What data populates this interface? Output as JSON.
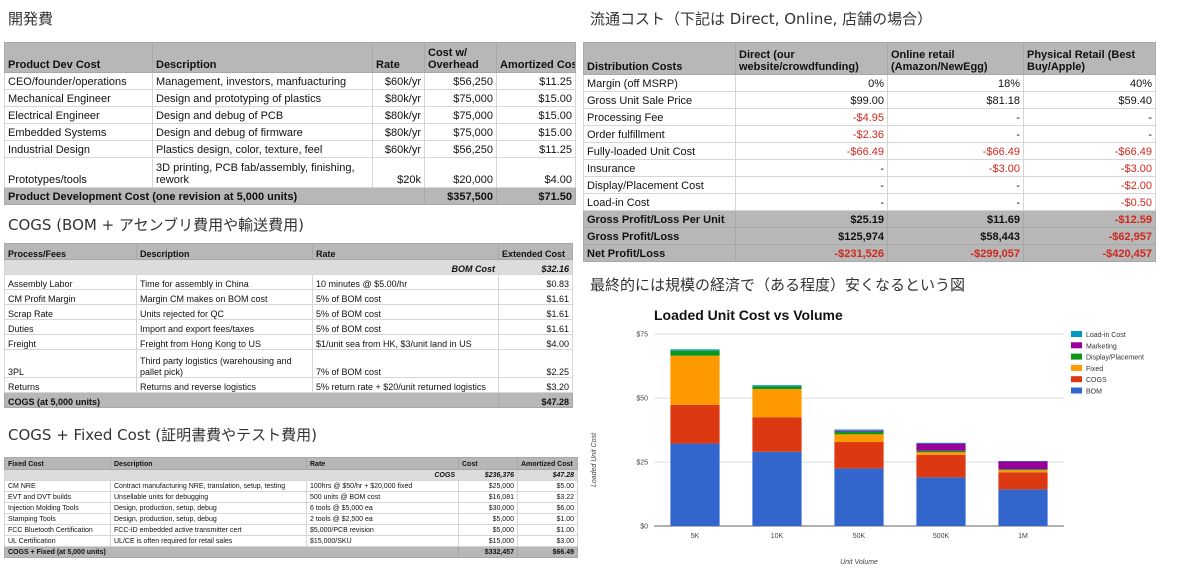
{
  "headings": {
    "dev": "開発費",
    "dist": "流通コスト（下記は Direct, Online, 店舗の場合）",
    "cogs": "COGS (BOM + アセンブリ費用や輸送費用)",
    "fixed": "COGS + Fixed Cost (証明書費やテスト費用)",
    "chart": "最終的には規模の経済で（ある程度）安くなるという図"
  },
  "dev_table": {
    "headers": [
      "Product Dev Cost",
      "Description",
      "Rate",
      "Cost w/ Overhead",
      "Amortized Cost"
    ],
    "rows": [
      [
        "CEO/founder/operations",
        "Management, investors, manfuacturing",
        "$60k/yr",
        "$56,250",
        "$11.25"
      ],
      [
        "Mechanical Engineer",
        "Design and prototyping of plastics",
        "$80k/yr",
        "$75,000",
        "$15.00"
      ],
      [
        "Electrical Engineer",
        "Design and debug of PCB",
        "$80k/yr",
        "$75,000",
        "$15.00"
      ],
      [
        "Embedded Systems",
        "Design and debug of firmware",
        "$80k/yr",
        "$75,000",
        "$15.00"
      ],
      [
        "Industrial Design",
        "Plastics design, color, texture, feel",
        "$60k/yr",
        "$56,250",
        "$11.25"
      ],
      [
        "Prototypes/tools",
        "3D printing, PCB fab/assembly, finishing, rework",
        "$20k",
        "$20,000",
        "$4.00"
      ]
    ],
    "total": [
      "Product Development Cost (one revision at 5,000 units)",
      "$357,500",
      "$71.50"
    ]
  },
  "cogs_table": {
    "headers": [
      "Process/Fees",
      "Description",
      "Rate",
      "Extended Cost"
    ],
    "sub": [
      "BOM Cost",
      "$32.16"
    ],
    "rows": [
      [
        "Assembly Labor",
        "Time for assembly in China",
        "10 minutes @ $5.00/hr",
        "$0.83"
      ],
      [
        "CM Profit Margin",
        "Margin CM makes on BOM cost",
        "5% of BOM cost",
        "$1.61"
      ],
      [
        "Scrap Rate",
        "Units rejected for QC",
        "5% of BOM cost",
        "$1.61"
      ],
      [
        "Duties",
        "Import and export fees/taxes",
        "5% of BOM cost",
        "$1.61"
      ],
      [
        "Freight",
        "Freight from Hong Kong to US",
        "$1/unit sea from HK, $3/unit land in US",
        "$4.00"
      ],
      [
        "3PL",
        "Third party logistics (warehousing and pallet pick)",
        "7% of BOM cost",
        "$2.25"
      ],
      [
        "Returns",
        "Returns and reverse logistics",
        "5% return rate + $20/unit returned logistics",
        "$3.20"
      ]
    ],
    "total": [
      "COGS (at 5,000 units)",
      "$47.28"
    ]
  },
  "fixed_table": {
    "headers": [
      "Fixed Cost",
      "Description",
      "Rate",
      "Cost",
      "Amortized Cost"
    ],
    "sub": [
      "COGS",
      "$236,376",
      "$47.28"
    ],
    "rows": [
      [
        "CM NRE",
        "Contract manufacturing NRE, translation, setup, testing",
        "100hrs @ $50/hr + $20,000 fixed",
        "$25,000",
        "$5.00"
      ],
      [
        "EVT and DVT builds",
        "Unsellable units for debugging",
        "500 units @ BOM cost",
        "$16,081",
        "$3.22"
      ],
      [
        "Injection Molding Tools",
        "Design, production, setup, debug",
        "6 tools @ $5,000 ea",
        "$30,000",
        "$6.00"
      ],
      [
        "Stamping Tools",
        "Design, production, setup, debug",
        "2 tools @ $2,500 ea",
        "$5,000",
        "$1.00"
      ],
      [
        "FCC Bluetooth Certification",
        "FCC-ID embedded active transmitter cert",
        "$5,000/PCB revision",
        "$5,000",
        "$1.00"
      ],
      [
        "UL Certification",
        "UL/CE is often required for retail sales",
        "$15,000/SKU",
        "$15,000",
        "$3.00"
      ]
    ],
    "total": [
      "COGS + Fixed (at 5,000 units)",
      "$332,457",
      "$66.49"
    ]
  },
  "dist_table": {
    "headers": [
      "Distribution Costs",
      "Direct (our website/crowdfunding)",
      "Online retail (Amazon/NewEgg)",
      "Physical Retail (Best Buy/Apple)"
    ],
    "rows": [
      {
        "cells": [
          "Margin (off MSRP)",
          "0%",
          "18%",
          "40%"
        ],
        "red": [
          false,
          false,
          false
        ]
      },
      {
        "cells": [
          "Gross Unit Sale Price",
          "$99.00",
          "$81.18",
          "$59.40"
        ],
        "red": [
          false,
          false,
          false
        ]
      },
      {
        "cells": [
          "Processing Fee",
          "-$4.95",
          "-",
          "-"
        ],
        "red": [
          true,
          false,
          false
        ]
      },
      {
        "cells": [
          "Order fulfillment",
          "-$2.36",
          "-",
          "-"
        ],
        "red": [
          true,
          false,
          false
        ]
      },
      {
        "cells": [
          "Fully-loaded Unit Cost",
          "-$66.49",
          "-$66.49",
          "-$66.49"
        ],
        "red": [
          true,
          true,
          true
        ]
      },
      {
        "cells": [
          "Insurance",
          "-",
          "-$3.00",
          "-$3.00"
        ],
        "red": [
          false,
          true,
          true
        ]
      },
      {
        "cells": [
          "Display/Placement Cost",
          "-",
          "-",
          "-$2.00"
        ],
        "red": [
          false,
          false,
          true
        ]
      },
      {
        "cells": [
          "Load-in Cost",
          "-",
          "-",
          "-$0.50"
        ],
        "red": [
          false,
          false,
          true
        ]
      }
    ],
    "totals": [
      {
        "cells": [
          "Gross Profit/Loss Per Unit",
          "$25.19",
          "$11.69",
          "-$12.59"
        ],
        "red": [
          false,
          false,
          true
        ]
      },
      {
        "cells": [
          "Gross Profit/Loss",
          "$125,974",
          "$58,443",
          "-$62,957"
        ],
        "red": [
          false,
          false,
          true
        ]
      },
      {
        "cells": [
          "Net Profit/Loss",
          "-$231,526",
          "-$299,057",
          "-$420,457"
        ],
        "red": [
          true,
          true,
          true
        ]
      }
    ]
  },
  "chart_data": {
    "type": "bar",
    "stacked": true,
    "title": "Loaded Unit Cost vs Volume",
    "xlabel": "Unit Volume",
    "ylabel": "Loaded Unit Cost",
    "categories": [
      "5K",
      "10K",
      "50K",
      "500K",
      "1M"
    ],
    "ylim": [
      0,
      75
    ],
    "yticks": [
      0,
      25,
      50,
      75
    ],
    "ytick_labels": [
      "$0",
      "$25",
      "$50",
      "$75"
    ],
    "legend_position": "right",
    "series": [
      {
        "name": "BOM",
        "color": "#3366cc",
        "values": [
          32.2,
          29.0,
          22.5,
          19.0,
          14.3
        ]
      },
      {
        "name": "COGS",
        "color": "#dc3912",
        "values": [
          15.1,
          13.5,
          10.3,
          8.8,
          6.7
        ]
      },
      {
        "name": "Fixed",
        "color": "#ff9900",
        "values": [
          19.2,
          11.0,
          3.0,
          1.0,
          0.8
        ]
      },
      {
        "name": "Display/Placement",
        "color": "#109618",
        "values": [
          2.0,
          1.0,
          1.0,
          0.6,
          0.4
        ]
      },
      {
        "name": "Marketing",
        "color": "#990099",
        "values": [
          0.0,
          0.0,
          0.4,
          2.8,
          3.0
        ]
      },
      {
        "name": "Load-in Cost",
        "color": "#0099c6",
        "values": [
          0.5,
          0.5,
          0.5,
          0.3,
          0.2
        ]
      }
    ],
    "legend_order": [
      "Load-in Cost",
      "Marketing",
      "Display/Placement",
      "Fixed",
      "COGS",
      "BOM"
    ]
  }
}
